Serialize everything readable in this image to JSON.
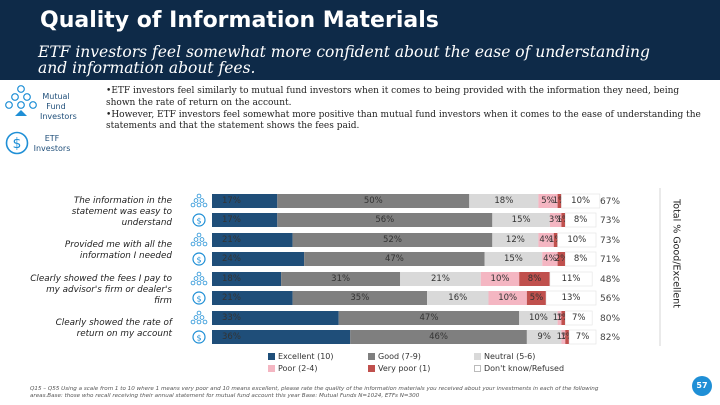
{
  "header": {
    "title": "Quality of Information Materials",
    "subtitle": "ETF investors feel somewhat more confident about the ease of understanding and information about fees."
  },
  "groups": {
    "mutual_fund_label": "Mutual Fund Investors",
    "etf_label": "ETF Investors"
  },
  "bullets": [
    "ETF investors feel similarly to mutual fund investors when it comes to being provided with the information they need, being shown the rate of return on the account.",
    "However, ETF investors feel somewhat more positive than mutual fund investors when it comes to the ease of understanding the statements and that the statement shows the fees paid."
  ],
  "axis": {
    "right_title": "Total % Good/Excellent"
  },
  "colors": {
    "excellent": "#1f4e79",
    "good": "#7f7f7f",
    "neutral": "#d9d9d9",
    "poor": "#f4b6c2",
    "very_poor": "#c0504d",
    "dont_know": "#ffffff"
  },
  "chart_data": {
    "type": "bar",
    "stacked": true,
    "orientation": "horizontal",
    "categories": [
      "The information in the statement was easy to understand",
      "Provided me with all the information I needed",
      "Clearly showed the fees I pay to my advisor's firm or dealer's firm",
      "Clearly showed the rate of return on my account"
    ],
    "bar_groups": [
      "Mutual Fund Investors",
      "ETF Investors"
    ],
    "rows": [
      {
        "category": 0,
        "group": "Mutual Fund Investors",
        "values": [
          17,
          50,
          18,
          5,
          1,
          10
        ],
        "labels": [
          "17%",
          "50%",
          "18%",
          "5%",
          "1%",
          "10%"
        ],
        "total": "67%"
      },
      {
        "category": 0,
        "group": "ETF Investors",
        "values": [
          17,
          56,
          15,
          3,
          1,
          8
        ],
        "labels": [
          "17%",
          "56%",
          "15%",
          "3%",
          "1%",
          "8%"
        ],
        "total": "73%"
      },
      {
        "category": 1,
        "group": "Mutual Fund Investors",
        "values": [
          21,
          52,
          12,
          4,
          1,
          10
        ],
        "labels": [
          "21%",
          "52%",
          "12%",
          "4%",
          "1%",
          "10%"
        ],
        "total": "73%"
      },
      {
        "category": 1,
        "group": "ETF Investors",
        "values": [
          24,
          47,
          15,
          4,
          2,
          8
        ],
        "labels": [
          "24%",
          "47%",
          "15%",
          "4%",
          "2%",
          "8%"
        ],
        "total": "71%"
      },
      {
        "category": 2,
        "group": "Mutual Fund Investors",
        "values": [
          18,
          31,
          21,
          10,
          8,
          11
        ],
        "labels": [
          "18%",
          "31%",
          "21%",
          "10%",
          "8%",
          "11%"
        ],
        "total": "48%"
      },
      {
        "category": 2,
        "group": "ETF Investors",
        "values": [
          21,
          35,
          16,
          10,
          5,
          13
        ],
        "labels": [
          "21%",
          "35%",
          "16%",
          "10%",
          "5%",
          "13%"
        ],
        "total": "56%"
      },
      {
        "category": 3,
        "group": "Mutual Fund Investors",
        "values": [
          33,
          47,
          10,
          1,
          1,
          7
        ],
        "labels": [
          "33%",
          "47%",
          "10%",
          "1%",
          "1%",
          "7%"
        ],
        "total": "80%"
      },
      {
        "category": 3,
        "group": "ETF Investors",
        "values": [
          36,
          46,
          9,
          1,
          1,
          7
        ],
        "labels": [
          "36%",
          "46%",
          "9%",
          "1%",
          "1%",
          "7%"
        ],
        "total": "82%"
      }
    ],
    "series": [
      {
        "name": "Excellent (10)",
        "key": "excellent"
      },
      {
        "name": "Good (7-9)",
        "key": "good"
      },
      {
        "name": "Neutral (5-6)",
        "key": "neutral"
      },
      {
        "name": "Poor (2-4)",
        "key": "poor"
      },
      {
        "name": "Very poor (1)",
        "key": "very_poor"
      },
      {
        "name": "Don't know/Refused",
        "key": "dont_know"
      }
    ],
    "xlim": [
      0,
      100
    ]
  },
  "footnote": "Q15 – Q55 Using a scale from 1 to 10 where 1 means very poor and 10 means excellent, please rate the quality of the information materials you received about your investments in each of the following areas.Base: those who recall receiving their annual statement for mutual fund account this year Base: Mutual Funds N=1024, ETFs N=300",
  "page_number": "57"
}
